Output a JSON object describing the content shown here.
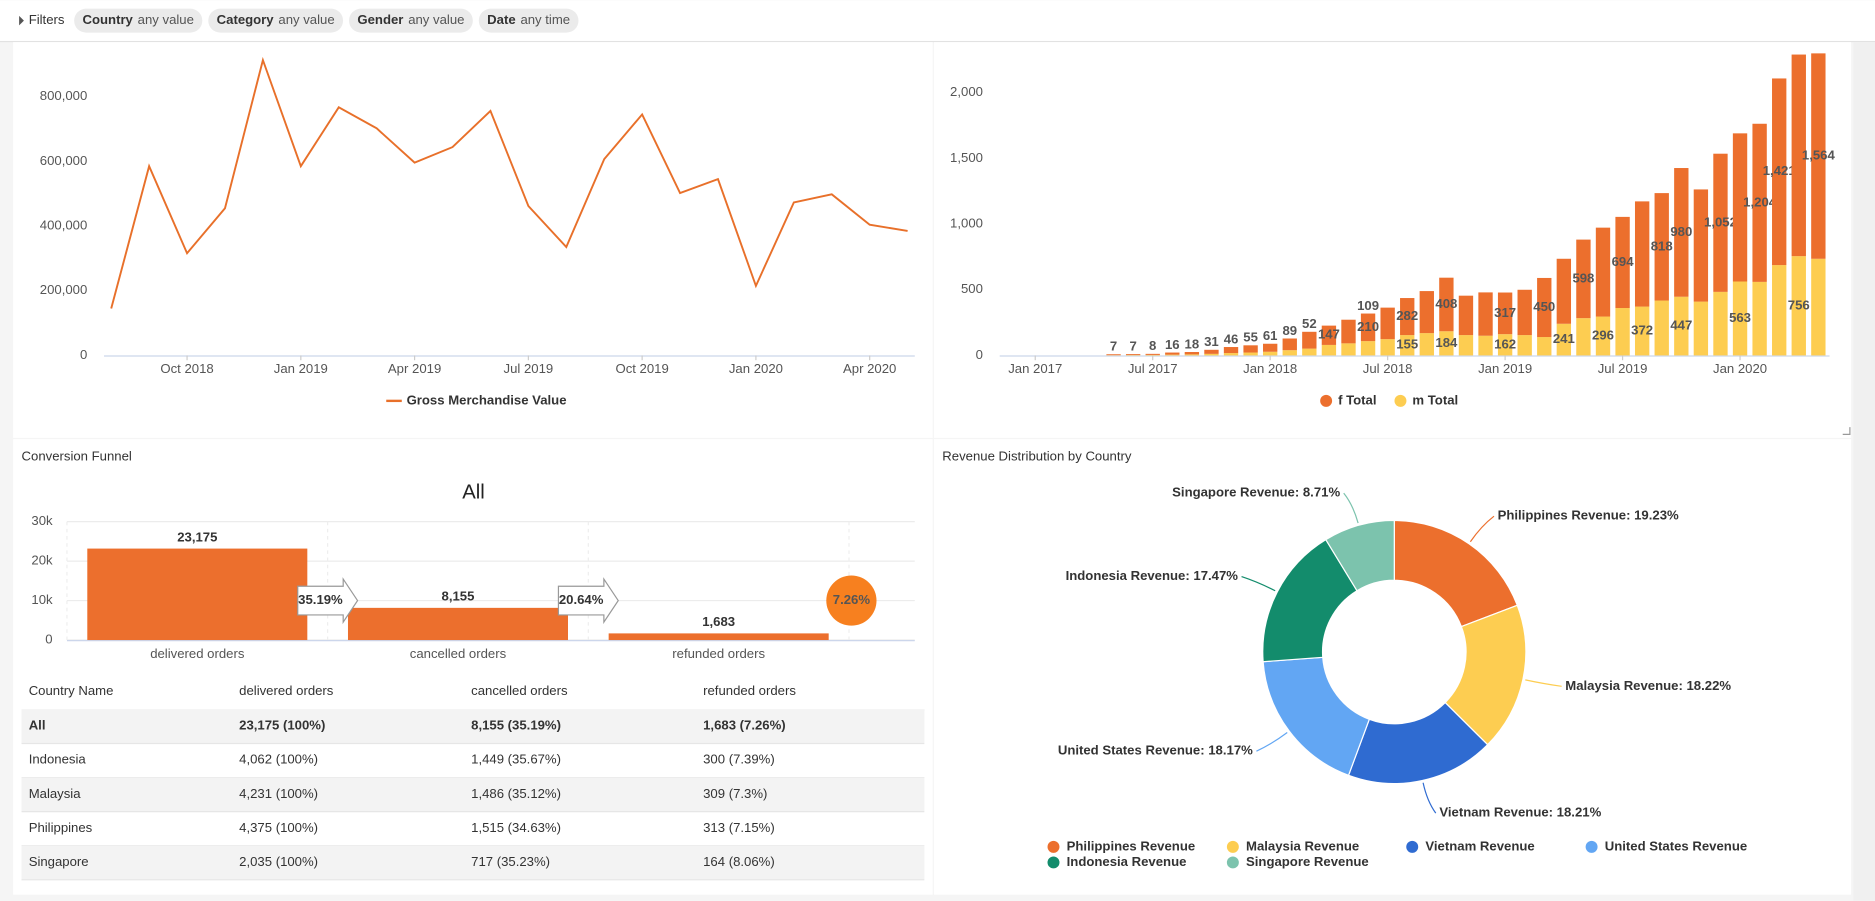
{
  "filters": {
    "label": "Filters",
    "items": [
      {
        "name": "Country",
        "value": "any value"
      },
      {
        "name": "Category",
        "value": "any value"
      },
      {
        "name": "Gender",
        "value": "any value"
      },
      {
        "name": "Date",
        "value": "any time"
      }
    ]
  },
  "chart_data": [
    {
      "type": "line",
      "x": [
        "2018-08",
        "2018-09",
        "2018-10",
        "2018-11",
        "2018-12",
        "2019-01",
        "2019-02",
        "2019-03",
        "2019-04",
        "2019-05",
        "2019-06",
        "2019-07",
        "2019-08",
        "2019-09",
        "2019-10",
        "2019-11",
        "2019-12",
        "2020-01",
        "2020-02",
        "2020-03",
        "2020-04",
        "2020-05"
      ],
      "series": [
        {
          "name": "Gross Merchandise Value",
          "color": "#e8702a",
          "values": [
            145000,
            585000,
            316000,
            455000,
            913000,
            585000,
            767000,
            702000,
            596000,
            644000,
            756000,
            462000,
            335000,
            607000,
            745000,
            502000,
            545000,
            215000,
            473000,
            498000,
            404000,
            385000
          ]
        }
      ],
      "xlim": [
        "2018-08",
        "2020-05"
      ],
      "xticks": [
        {
          "value": "2018-10",
          "label": "Oct 2018"
        },
        {
          "value": "2019-01",
          "label": "Jan 2019"
        },
        {
          "value": "2019-04",
          "label": "Apr 2019"
        },
        {
          "value": "2019-07",
          "label": "Jul 2019"
        },
        {
          "value": "2019-10",
          "label": "Oct 2019"
        },
        {
          "value": "2020-01",
          "label": "Jan 2020"
        },
        {
          "value": "2020-04",
          "label": "Apr 2020"
        }
      ],
      "ylim": [
        0,
        950000
      ],
      "yticks": [
        0,
        {
          "value": 200000,
          "label": "200,000"
        },
        {
          "value": 400000,
          "label": "400,000"
        },
        {
          "value": 600000,
          "label": "600,000"
        },
        {
          "value": 800000,
          "label": "800,000"
        }
      ],
      "legend": "bottom"
    },
    {
      "type": "stacked_bar",
      "x": [
        "2017-05",
        "2017-06",
        "2017-07",
        "2017-08",
        "2017-09",
        "2017-10",
        "2017-11",
        "2017-12",
        "2018-01",
        "2018-02",
        "2018-03",
        "2018-04",
        "2018-05",
        "2018-06",
        "2018-07",
        "2018-08",
        "2018-09",
        "2018-10",
        "2018-11",
        "2018-12",
        "2019-01",
        "2019-02",
        "2019-03",
        "2019-04",
        "2019-05",
        "2019-06",
        "2019-07",
        "2019-08",
        "2019-09",
        "2019-10",
        "2019-11",
        "2019-12",
        "2020-01",
        "2020-02",
        "2020-03",
        "2020-04",
        "2020-05"
      ],
      "series": [
        {
          "name": "f Total",
          "color": "#ec6f2d",
          "values": [
            7,
            7,
            8,
            16,
            18,
            31,
            46,
            55,
            61,
            89,
            128,
            147,
            180,
            210,
            240,
            282,
            320,
            408,
            300,
            330,
            317,
            345,
            450,
            495,
            598,
            677,
            694,
            801,
            818,
            980,
            854,
            1052,
            1128,
            1204,
            1421,
            1535,
            1564
          ],
          "value_labels": [
            "7",
            "7",
            "8",
            "16",
            "18",
            "31",
            "46",
            "55",
            "61",
            "89",
            null,
            "147",
            null,
            "210",
            null,
            "282",
            null,
            "408",
            null,
            null,
            "317",
            null,
            "450",
            null,
            "598",
            null,
            "694",
            null,
            "818",
            "980",
            null,
            "1,052",
            null,
            "1,204",
            "1,421",
            null,
            "1,564"
          ]
        },
        {
          "name": "m Total",
          "color": "#fdcd51",
          "values": [
            2,
            3,
            4,
            6,
            8,
            12,
            18,
            22,
            28,
            40,
            52,
            80,
            92,
            109,
            124,
            155,
            170,
            184,
            155,
            150,
            162,
            155,
            140,
            241,
            284,
            296,
            361,
            372,
            418,
            447,
            410,
            484,
            563,
            560,
            688,
            756,
            736
          ],
          "value_labels": [
            null,
            null,
            null,
            null,
            null,
            null,
            null,
            null,
            null,
            null,
            "52",
            null,
            null,
            "109",
            null,
            "155",
            null,
            "184",
            null,
            null,
            "162",
            null,
            null,
            "241",
            null,
            "296",
            null,
            "372",
            null,
            "447",
            null,
            null,
            "563",
            null,
            null,
            "756",
            null
          ]
        }
      ],
      "xlim": [
        "2016-11",
        "2020-06"
      ],
      "xticks": [
        {
          "value": "2017-01",
          "label": "Jan 2017"
        },
        {
          "value": "2017-07",
          "label": "Jul 2017"
        },
        {
          "value": "2018-01",
          "label": "Jan 2018"
        },
        {
          "value": "2018-07",
          "label": "Jul 2018"
        },
        {
          "value": "2019-01",
          "label": "Jan 2019"
        },
        {
          "value": "2019-07",
          "label": "Jul 2019"
        },
        {
          "value": "2020-01",
          "label": "Jan 2020"
        }
      ],
      "ylim": [
        0,
        2340
      ],
      "yticks": [
        0,
        500,
        {
          "value": 1000,
          "label": "1,000"
        },
        {
          "value": 1500,
          "label": "1,500"
        },
        {
          "value": 2000,
          "label": "2,000"
        }
      ],
      "legend": "bottom"
    },
    {
      "type": "funnel",
      "title": "Conversion Funnel",
      "subtitle": "All",
      "categories": [
        "delivered orders",
        "cancelled orders",
        "refunded orders"
      ],
      "values": [
        23175,
        8155,
        1683
      ],
      "value_labels": [
        "23,175",
        "8,155",
        "1,683"
      ],
      "color": "#ec6f2d",
      "ylim": [
        0,
        30000
      ],
      "yticks": [
        0,
        {
          "value": 10000,
          "label": "10k"
        },
        {
          "value": 20000,
          "label": "20k"
        },
        {
          "value": 30000,
          "label": "30k"
        }
      ],
      "conversion": {
        "values": [
          35.19,
          20.64
        ],
        "value_labels": [
          "35.19%",
          "20.64%"
        ]
      },
      "overall": {
        "value": 7.26,
        "label": "7.26%",
        "color": "#f7801f"
      }
    },
    {
      "type": "donut",
      "title": "Revenue Distribution by Country",
      "categories": [
        "Philippines Revenue",
        "Malaysia Revenue",
        "Vietnam Revenue",
        "United States Revenue",
        "Indonesia Revenue",
        "Singapore Revenue"
      ],
      "values": [
        19.23,
        18.22,
        18.21,
        18.17,
        17.47,
        8.71
      ],
      "value_labels": [
        "Philippines Revenue: 19.23%",
        "Malaysia Revenue: 18.22%",
        "Vietnam Revenue: 18.21%",
        "United States Revenue: 18.17%",
        "Indonesia Revenue: 17.47%",
        "Singapore Revenue: 8.71%"
      ],
      "colors": [
        "#ec6f2d",
        "#fdcd51",
        "#2f6bd1",
        "#62a6f3",
        "#138c6c",
        "#7cc3ad"
      ],
      "legend": "bottom"
    }
  ],
  "table": {
    "columns": [
      "Country Name",
      "delivered orders",
      "cancelled orders",
      "refunded orders"
    ],
    "rows": [
      [
        "All",
        "23,175 (100%)",
        "8,155 (35.19%)",
        "1,683 (7.26%)"
      ],
      [
        "Indonesia",
        "4,062 (100%)",
        "1,449 (35.67%)",
        "300 (7.39%)"
      ],
      [
        "Malaysia",
        "4,231 (100%)",
        "1,486 (35.12%)",
        "309 (7.3%)"
      ],
      [
        "Philippines",
        "4,375 (100%)",
        "1,515 (34.63%)",
        "313 (7.15%)"
      ],
      [
        "Singapore",
        "2,035 (100%)",
        "717 (35.23%)",
        "164 (8.06%)"
      ]
    ]
  }
}
